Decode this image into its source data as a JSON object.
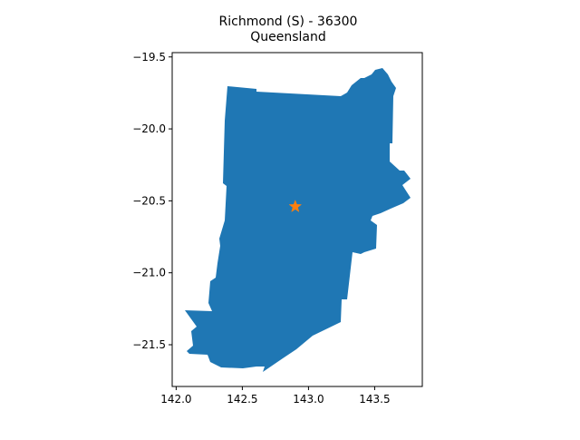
{
  "chart_data": {
    "type": "map",
    "title_line1": "Richmond (S) - 36300",
    "title_line2": "Queensland",
    "x_ticks": [
      "142.0",
      "142.5",
      "143.0",
      "143.5"
    ],
    "y_ticks": [
      "−19.5",
      "−20.0",
      "−20.5",
      "−21.0",
      "−21.5"
    ],
    "xlim": [
      141.97,
      143.86
    ],
    "ylim": [
      -21.79,
      -19.47
    ],
    "region_color": "#1f77b4",
    "marker": {
      "symbol": "star",
      "color": "#ff7f0e",
      "lon": 142.9,
      "lat": -20.54
    },
    "grid": false,
    "legend": false
  }
}
